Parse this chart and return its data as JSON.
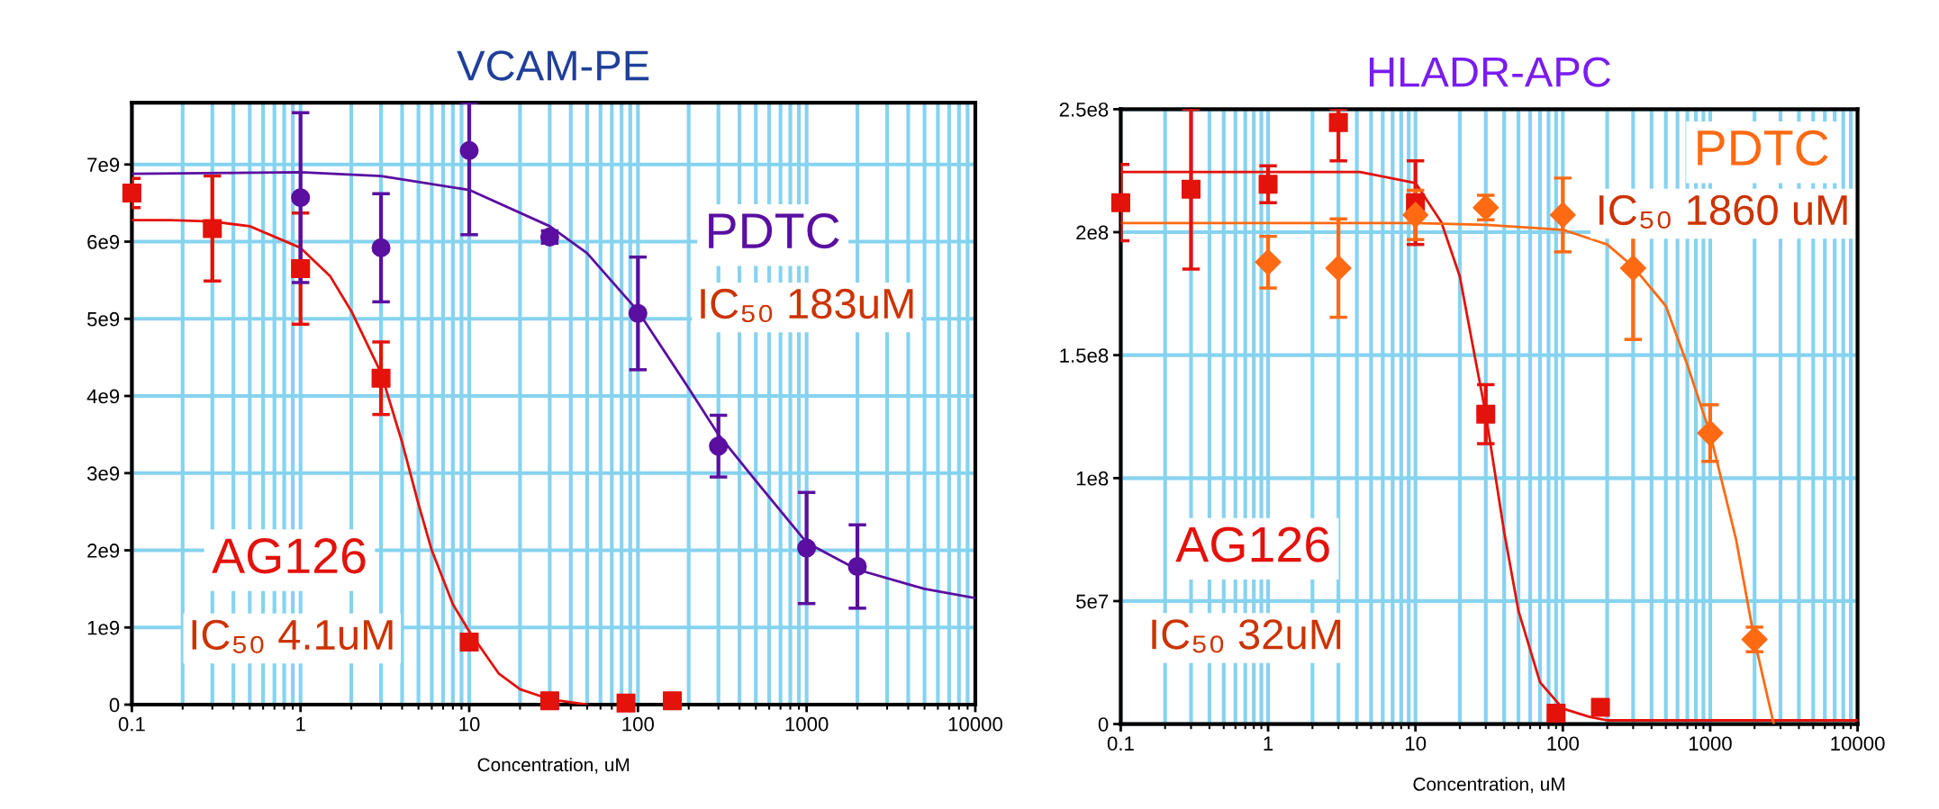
{
  "chart_data": [
    {
      "type": "scatter",
      "title": "VCAM-PE",
      "xlabel": "Concentration, uM",
      "log": "x",
      "grid": true,
      "xlim": [
        0.1,
        10000
      ],
      "xticks": [
        0.1,
        1,
        10,
        100,
        1000,
        10000
      ],
      "ylim": [
        0,
        7800000000
      ],
      "yticks": [
        0,
        {
          "value": 1000000000,
          "label": "1e9"
        },
        {
          "value": 2000000000,
          "label": "2e9"
        },
        {
          "value": 3000000000,
          "label": "3e9"
        },
        {
          "value": 4000000000,
          "label": "4e9"
        },
        {
          "value": 5000000000,
          "label": "5e9"
        },
        {
          "value": 6000000000,
          "label": "6e9"
        },
        {
          "value": 7000000000,
          "label": "7e9"
        }
      ],
      "annotations": [
        "IC₅₀ 4.1uM",
        "IC₅₀ 183uM"
      ],
      "series": [
        {
          "name": "AG126",
          "type": "scatter",
          "marker": "square",
          "color": "#e3120b",
          "x": [
            0.1,
            0.3,
            1,
            3,
            10,
            30,
            85,
            160
          ],
          "values": [
            6630000000,
            6170000000,
            5650000000,
            4230000000,
            810000000,
            50000000,
            20000000,
            50000000
          ],
          "errors": [
            190000000,
            680000000,
            720000000,
            470000000,
            null,
            null,
            null,
            null
          ]
        },
        {
          "type": "line",
          "color": "#e3120b",
          "x": [
            0.1,
            0.17,
            0.3,
            0.5,
            1,
            1.5,
            2,
            3,
            4,
            5,
            6,
            8,
            10,
            15,
            20,
            30,
            50
          ],
          "values": [
            6280000000,
            6280000000,
            6260000000,
            6200000000,
            5920000000,
            5550000000,
            5100000000,
            4300000000,
            3400000000,
            2600000000,
            2000000000,
            1300000000,
            950000000,
            400000000,
            200000000,
            70000000,
            0
          ]
        },
        {
          "name": "PDTC",
          "type": "scatter",
          "marker": "circle",
          "color": "#5a0fa0",
          "x": [
            1,
            3,
            10,
            30,
            100,
            300,
            1000,
            2000
          ],
          "values": [
            6570000000,
            5920000000,
            7180000000,
            6060000000,
            5070000000,
            3350000000,
            2030000000,
            1790000000
          ],
          "errors": [
            1100000000,
            700000000,
            [
              6090000000,
              7800000000
            ],
            80000000,
            730000000,
            400000000,
            720000000,
            540000000
          ]
        },
        {
          "type": "line",
          "color": "#5a0fa0",
          "x": [
            0.1,
            0.4,
            1,
            3,
            10,
            30,
            50,
            100,
            200,
            300,
            500,
            1000,
            2000,
            5000,
            10000
          ],
          "values": [
            6880000000,
            6890000000,
            6900000000,
            6850000000,
            6670000000,
            6200000000,
            5850000000,
            5100000000,
            4100000000,
            3500000000,
            2900000000,
            2100000000,
            1750000000,
            1500000000,
            1380000000
          ]
        }
      ]
    },
    {
      "type": "scatter",
      "title": "HLADR-APC",
      "xlabel": "Concentration, uM",
      "log": "x",
      "grid": true,
      "xlim": [
        0.1,
        10000
      ],
      "xticks": [
        0.1,
        1,
        10,
        100,
        1000,
        10000
      ],
      "ylim": [
        0,
        250000000
      ],
      "yticks": [
        0,
        {
          "value": 50000000,
          "label": "5e7"
        },
        {
          "value": 100000000,
          "label": "1e8"
        },
        {
          "value": 150000000,
          "label": "1.5e8"
        },
        {
          "value": 200000000,
          "label": "2e8"
        },
        {
          "value": 250000000,
          "label": "2.5e8"
        }
      ],
      "annotations": [
        "IC₅₀ 32uM",
        "IC₅₀ 1860 uM"
      ],
      "series": [
        {
          "name": "AG126",
          "type": "scatter",
          "marker": "square",
          "color": "#e3120b",
          "x": [
            0.1,
            0.3,
            1,
            3,
            10,
            30,
            90,
            180
          ],
          "values": [
            212000000,
            217500000,
            219500000,
            244600000,
            212000000,
            126000000,
            4400000,
            6800000
          ],
          "errors": [
            15500000,
            [
              185000000,
              250000000
            ],
            7500000,
            [
              229000000,
              250000000
            ],
            17000000,
            12000000,
            null,
            null
          ]
        },
        {
          "type": "line",
          "color": "#e3120b",
          "x": [
            0.1,
            4.2,
            10,
            15,
            20,
            25,
            30,
            40,
            50,
            70,
            100,
            150,
            200,
            10000
          ],
          "values": [
            224500000,
            224500000,
            220000000,
            204000000,
            182000000,
            151000000,
            126000000,
            78000000,
            46000000,
            17000000,
            6300000,
            3000000,
            1500000,
            1500000
          ]
        },
        {
          "name": "PDTC",
          "type": "scatter",
          "marker": "diamond",
          "color": "#ff6a13",
          "x": [
            1,
            3,
            10,
            30,
            100,
            300,
            1000,
            2000
          ],
          "values": [
            187800000,
            185400000,
            207000000,
            210000000,
            207000000,
            185400000,
            118300000,
            34400000
          ],
          "errors": [
            10500000,
            20000000,
            10000000,
            5000000,
            15000000,
            29000000,
            11500000,
            5000000
          ]
        },
        {
          "type": "line",
          "color": "#ff6a13",
          "x": [
            0.1,
            10,
            30,
            100,
            200,
            300,
            500,
            700,
            1000,
            1500,
            2000,
            2700
          ],
          "values": [
            203700000,
            203700000,
            203000000,
            201000000,
            195000000,
            186000000,
            170000000,
            146000000,
            118000000,
            75000000,
            34000000,
            0
          ]
        }
      ]
    }
  ]
}
